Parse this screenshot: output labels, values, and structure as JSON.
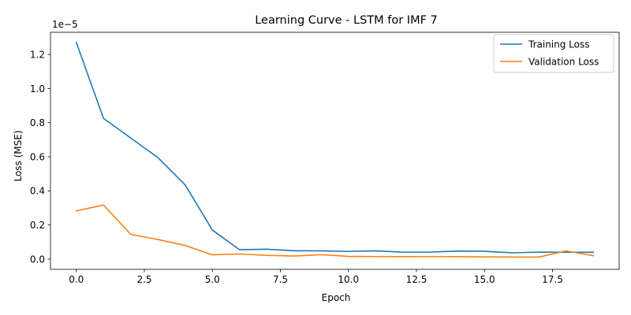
{
  "chart_data": {
    "type": "line",
    "title": "Learning Curve - LSTM for IMF 7",
    "xlabel": "Epoch",
    "ylabel": "Loss (MSE)",
    "y_offset_label": "1e−5",
    "xlim": [
      -0.95,
      19.95
    ],
    "ylim": [
      -0.06,
      1.33
    ],
    "x_ticks": [
      0.0,
      2.5,
      5.0,
      7.5,
      10.0,
      12.5,
      15.0,
      17.5
    ],
    "x_tick_labels": [
      "0.0",
      "2.5",
      "5.0",
      "7.5",
      "10.0",
      "12.5",
      "15.0",
      "17.5"
    ],
    "y_ticks": [
      0.0,
      0.2,
      0.4,
      0.6,
      0.8,
      1.0,
      1.2
    ],
    "y_tick_labels": [
      "0.0",
      "0.2",
      "0.4",
      "0.6",
      "0.8",
      "1.0",
      "1.2"
    ],
    "grid": false,
    "legend_position": "top-right",
    "x": [
      0,
      1,
      2,
      3,
      4,
      5,
      6,
      7,
      8,
      9,
      10,
      11,
      12,
      13,
      14,
      15,
      16,
      17,
      18,
      19
    ],
    "series": [
      {
        "name": "Training Loss",
        "color": "#1f77b4",
        "values": [
          1.27,
          0.825,
          0.71,
          0.595,
          0.435,
          0.17,
          0.055,
          0.058,
          0.049,
          0.048,
          0.045,
          0.048,
          0.041,
          0.041,
          0.047,
          0.046,
          0.037,
          0.041,
          0.04,
          0.04
        ]
      },
      {
        "name": "Validation Loss",
        "color": "#ff7f0e",
        "values": [
          0.283,
          0.317,
          0.145,
          0.115,
          0.08,
          0.025,
          0.03,
          0.022,
          0.018,
          0.026,
          0.016,
          0.015,
          0.014,
          0.015,
          0.014,
          0.013,
          0.012,
          0.012,
          0.048,
          0.02
        ]
      }
    ]
  }
}
